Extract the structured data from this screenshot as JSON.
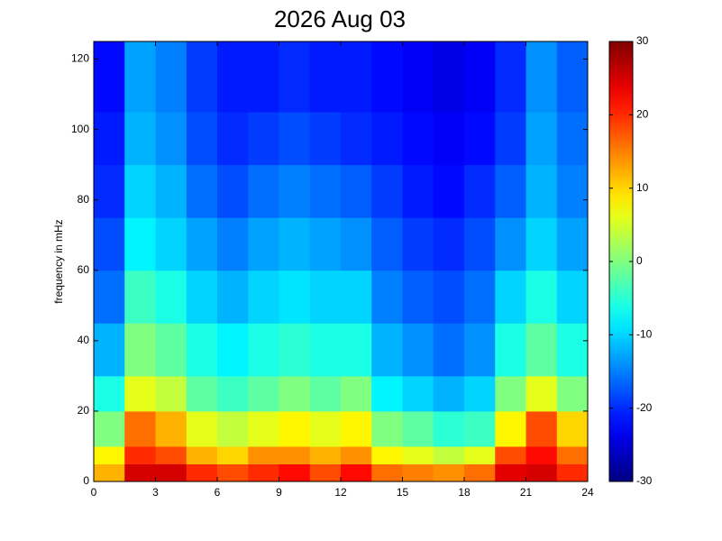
{
  "chart_data": {
    "type": "heatmap",
    "title": "2026 Aug 03",
    "ylabel": "frequency in mHz",
    "colormap": "jet",
    "x_edges": [
      0,
      1.5,
      3,
      4.5,
      6,
      7.5,
      9,
      10.5,
      12,
      13.5,
      15,
      16.5,
      18,
      19.5,
      21,
      22.5,
      24
    ],
    "y_edges": [
      0,
      5,
      10,
      20,
      30,
      45,
      60,
      75,
      90,
      105,
      125
    ],
    "values": [
      [
        12,
        25,
        25,
        20,
        18,
        20,
        22,
        18,
        22,
        16,
        15,
        14,
        16,
        24,
        25,
        20
      ],
      [
        8,
        20,
        18,
        12,
        10,
        14,
        14,
        12,
        14,
        8,
        6,
        4,
        6,
        18,
        22,
        16
      ],
      [
        0,
        16,
        12,
        6,
        4,
        6,
        8,
        6,
        8,
        0,
        -2,
        -5,
        -4,
        8,
        18,
        10
      ],
      [
        -6,
        6,
        4,
        -2,
        -4,
        -2,
        0,
        -2,
        0,
        -8,
        -10,
        -12,
        -10,
        0,
        6,
        0
      ],
      [
        -12,
        0,
        -2,
        -6,
        -8,
        -6,
        -5,
        -6,
        -6,
        -12,
        -14,
        -16,
        -14,
        -6,
        -2,
        -6
      ],
      [
        -16,
        -4,
        -6,
        -10,
        -12,
        -10,
        -9,
        -10,
        -10,
        -15,
        -17,
        -18,
        -16,
        -10,
        -6,
        -10
      ],
      [
        -18,
        -8,
        -10,
        -13,
        -15,
        -13,
        -12,
        -13,
        -14,
        -17,
        -19,
        -20,
        -18,
        -14,
        -10,
        -13
      ],
      [
        -20,
        -10,
        -12,
        -16,
        -18,
        -16,
        -15,
        -16,
        -17,
        -19,
        -21,
        -22,
        -20,
        -17,
        -12,
        -15
      ],
      [
        -21,
        -12,
        -14,
        -18,
        -20,
        -19,
        -18,
        -19,
        -20,
        -21,
        -22,
        -23,
        -22,
        -19,
        -13,
        -16
      ],
      [
        -22,
        -13,
        -15,
        -19,
        -21,
        -21,
        -20,
        -21,
        -21,
        -22,
        -23,
        -24,
        -23,
        -20,
        -14,
        -17
      ]
    ],
    "xlim": [
      0,
      24
    ],
    "xticks": [
      0,
      3,
      6,
      9,
      12,
      15,
      18,
      21,
      24
    ],
    "ylim": [
      0,
      125
    ],
    "yticks": [
      0,
      20,
      40,
      60,
      80,
      100,
      120
    ],
    "clim": [
      -30,
      30
    ],
    "cticks": [
      -30,
      -20,
      -10,
      0,
      10,
      20,
      30
    ]
  }
}
